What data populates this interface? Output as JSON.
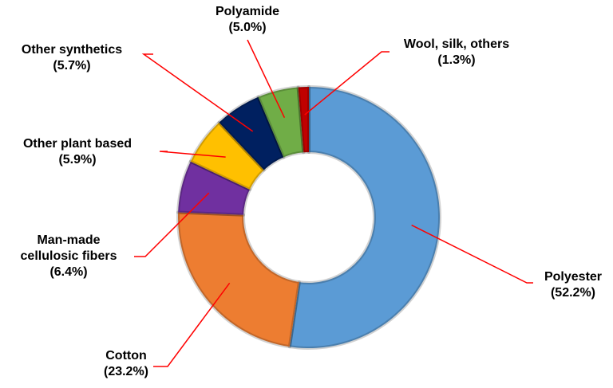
{
  "chart_data": {
    "type": "donut",
    "categories": [
      "Polyester",
      "Cotton",
      "Man-made cellulosic fibers",
      "Other plant based",
      "Other synthetics",
      "Polyamide",
      "Wool, silk, others"
    ],
    "values": [
      52.2,
      23.2,
      6.4,
      5.9,
      5.7,
      5.0,
      1.3
    ],
    "value_labels": [
      "(52.2%)",
      "(23.2%)",
      "(6.4%)",
      "(5.9%)",
      "(5.7%)",
      "(5.0%)",
      "(1.3%)"
    ],
    "colors": [
      "#5b9bd5",
      "#ed7d31",
      "#7030a0",
      "#ffc000",
      "#002060",
      "#70ad47",
      "#c00000"
    ]
  }
}
